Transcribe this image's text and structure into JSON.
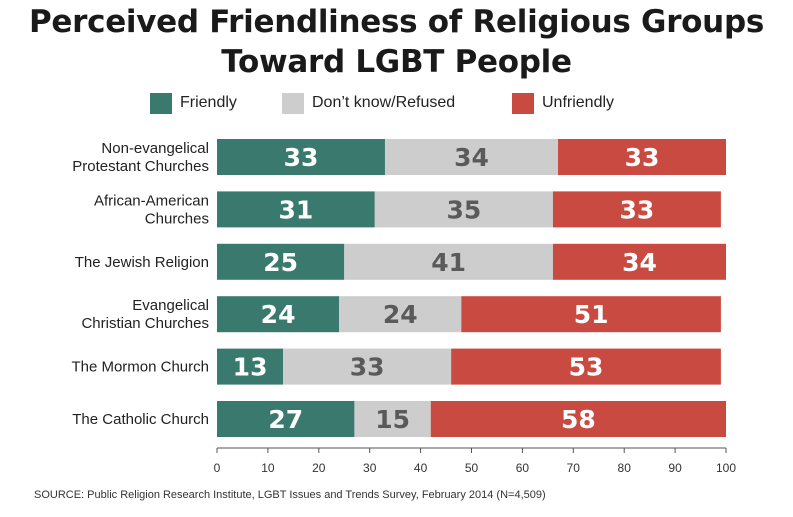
{
  "title_line1": "Perceived Friendliness of Religious Groups",
  "title_line2": "Toward LGBT People",
  "source": "SOURCE: Public Religion Research Institute, LGBT Issues and Trends Survey, February 2014 (N=4,509)",
  "colors": {
    "friendly": "#3a7a6e",
    "dont_know": "#cdcdcd",
    "unfriendly": "#c94a40",
    "label_light": "#ffffff",
    "label_dark": "#5a5a5a"
  },
  "chart_data": {
    "type": "bar",
    "orientation": "horizontal-stacked",
    "categories": [
      [
        "Non-evangelical",
        "Protestant Churches"
      ],
      [
        "African-American",
        "Churches"
      ],
      [
        "The Jewish Religion"
      ],
      [
        "Evangelical",
        "Christian Churches"
      ],
      [
        "The Mormon Church"
      ],
      [
        "The Catholic Church"
      ]
    ],
    "series": [
      {
        "name": "Friendly",
        "values": [
          33,
          31,
          25,
          24,
          13,
          27
        ]
      },
      {
        "name": "Don’t know/Refused",
        "values": [
          34,
          35,
          41,
          24,
          33,
          15
        ]
      },
      {
        "name": "Unfriendly",
        "values": [
          33,
          33,
          34,
          51,
          53,
          58
        ]
      }
    ],
    "xlim": [
      0,
      100
    ],
    "xticks": [
      0,
      10,
      20,
      30,
      40,
      50,
      60,
      70,
      80,
      90,
      100
    ],
    "legend_position": "top",
    "grid": false
  }
}
